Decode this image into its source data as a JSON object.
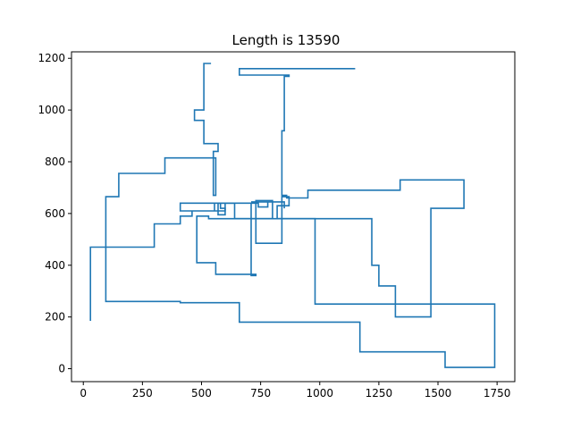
{
  "chart_data": {
    "type": "line",
    "title": "Length is 13590",
    "xlabel": "",
    "ylabel": "",
    "xlim": [
      -50,
      1825
    ],
    "ylim": [
      -50,
      1225
    ],
    "xticks": [
      0,
      250,
      500,
      750,
      1000,
      1250,
      1500,
      1750
    ],
    "yticks": [
      0,
      200,
      400,
      600,
      800,
      1000,
      1200
    ],
    "grid": false,
    "legend": "none",
    "color": "#1f77b4",
    "series": [
      {
        "x": [
          30,
          30,
          300,
          300,
          410,
          410,
          460,
          460,
          555,
          555,
          580,
          580,
          600,
          600,
          410,
          410,
          640,
          640,
          800,
          800,
          730,
          730,
          840,
          840,
          860,
          860,
          950,
          950,
          1340,
          1340,
          1610,
          1610,
          1470,
          1470,
          1320,
          1320,
          1250,
          1250,
          1220,
          1220,
          820,
          820,
          870,
          870,
          840,
          840,
          850,
          850,
          870,
          870,
          660,
          660,
          1150
        ],
        "y": [
          185,
          470,
          470,
          560,
          560,
          590,
          590,
          610,
          610,
          640,
          640,
          620,
          620,
          610,
          610,
          640,
          640,
          580,
          580,
          650,
          650,
          485,
          485,
          670,
          670,
          660,
          660,
          690,
          690,
          730,
          730,
          620,
          620,
          200,
          200,
          320,
          320,
          400,
          400,
          580,
          580,
          630,
          630,
          665,
          665,
          920,
          920,
          1130,
          1130,
          1135,
          1135,
          1160,
          1160
        ]
      },
      {
        "x": [
          540,
          540,
          510,
          510,
          470,
          470,
          490,
          490,
          510,
          510,
          570,
          570,
          550,
          550,
          560,
          560,
          345,
          345,
          150,
          150,
          95,
          95,
          410,
          410,
          660,
          660,
          1170,
          1170,
          1530,
          1530,
          1740,
          1740,
          980,
          980,
          530,
          530,
          480,
          480,
          560,
          560,
          730,
          730,
          710,
          710,
          600,
          600,
          570,
          570,
          740,
          740,
          780,
          780,
          710,
          710,
          850,
          850
        ],
        "y": [
          1180,
          1180,
          1180,
          1000,
          1000,
          960,
          960,
          960,
          960,
          870,
          870,
          840,
          840,
          670,
          670,
          815,
          815,
          755,
          755,
          665,
          665,
          260,
          260,
          255,
          255,
          180,
          180,
          65,
          65,
          5,
          5,
          250,
          250,
          580,
          580,
          590,
          590,
          410,
          410,
          365,
          365,
          360,
          360,
          640,
          640,
          595,
          595,
          640,
          640,
          625,
          625,
          645,
          645,
          645,
          645,
          620
        ]
      }
    ]
  }
}
